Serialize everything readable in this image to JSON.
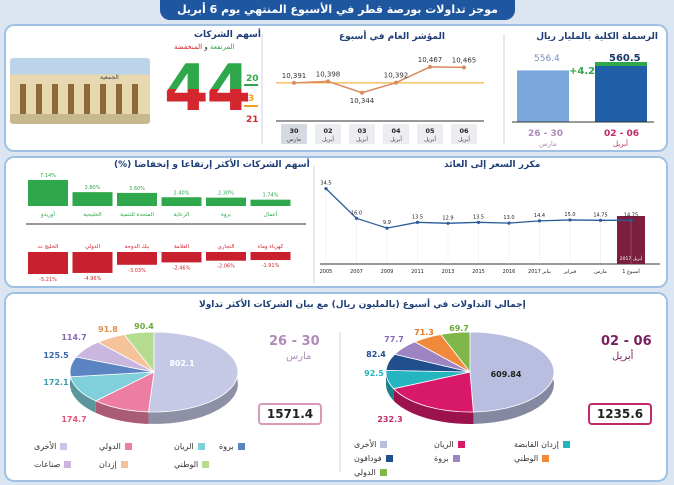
{
  "title": "موجز تداولات بورصة قطر في الأسبوع المنتهي يوم 6 أبريل 2017",
  "cap": {
    "header": "الرسملة الكلية بالمليار ريال",
    "prev_value": "556.4",
    "curr_value": "560.5",
    "change": "+4.2",
    "prev_label": "26 - 30",
    "prev_sub": "مارس",
    "curr_label": "02 - 06",
    "curr_sub": "أبريل",
    "colors": {
      "prev": "#7aa8dd",
      "curr": "#1f5fa8",
      "change": "#2ea84a"
    }
  },
  "index": {
    "header": "المؤشر العام في أسبوع",
    "chart_data": {
      "type": "line",
      "categories": [
        "30",
        "02",
        "03",
        "04",
        "05",
        "06"
      ],
      "category_sub": [
        "مارس",
        "أبريل",
        "أبريل",
        "أبريل",
        "أبريل",
        "أبريل"
      ],
      "values": [
        10391,
        10398,
        10344,
        10392,
        10467,
        10465
      ],
      "value_labels": [
        "10,391",
        "10,398",
        "10,344",
        "10,392",
        "10,467",
        "10,465"
      ]
    }
  },
  "stocks": {
    "header": "أسهم الشركات",
    "subheader_up": "المرتفعة",
    "subheader_and": "و",
    "subheader_down": "المنخفضة",
    "big_number": "44",
    "up": "20",
    "unchanged": "3",
    "down": "21",
    "colors": {
      "up": "#2ea84a",
      "down": "#d3262e",
      "unchanged": "#f0a020"
    },
    "photo_caption": "الجمعية"
  },
  "movers": {
    "header": "أسهم الشركات الأكثر إرتفاعا و إنخفاضا (%)",
    "chart_data": {
      "type": "bar",
      "gainers": [
        {
          "name": "أوريدو",
          "value": 7.14,
          "label": "7.14%"
        },
        {
          "name": "الخليجية",
          "value": 3.8,
          "label": "3.80%"
        },
        {
          "name": "المتحدة للتنمية",
          "value": 3.6,
          "label": "3.60%"
        },
        {
          "name": "الرعاية",
          "value": 2.4,
          "label": "2.40%"
        },
        {
          "name": "بروة",
          "value": 2.3,
          "label": "2.30%"
        },
        {
          "name": "أعمال",
          "value": 1.74,
          "label": "1.74%"
        }
      ],
      "losers": [
        {
          "name": "الخليج ت",
          "value": -5.21,
          "label": "-5.21%"
        },
        {
          "name": "الدولي",
          "value": -4.96,
          "label": "-4.96%"
        },
        {
          "name": "بنك الدوحة",
          "value": -3.03,
          "label": "-3.03%"
        },
        {
          "name": "العلامة",
          "value": -2.46,
          "label": "-2.46%"
        },
        {
          "name": "التجاري",
          "value": -2.06,
          "label": "-2.06%"
        },
        {
          "name": "كهرباء وماء",
          "value": -1.91,
          "label": "-1.91%"
        }
      ]
    }
  },
  "pe": {
    "header": "مكرر السعر إلى العائد",
    "highlight_label": "أبريل 2017",
    "chart_data": {
      "type": "line",
      "categories": [
        "2005",
        "2007",
        "2009",
        "2011",
        "2013",
        "2015",
        "2016",
        "يناير 2017",
        "فبراير",
        "مارس",
        "أسبوع 1"
      ],
      "values": [
        34.5,
        16.0,
        9.9,
        13.5,
        12.9,
        13.5,
        13.0,
        14.4,
        15.0,
        14.75,
        14.75
      ],
      "value_labels": [
        "34.5",
        "16.0",
        "9.9",
        "13.5",
        "12.9",
        "13.5",
        "13.0",
        "14.4",
        "15.0",
        "14.75",
        "14.75"
      ]
    }
  },
  "turnover": {
    "header": "إجمالي التداولات في أسبوع (بالمليون ريال) مع بيان الشركات الأكثر تداولا",
    "curr": {
      "period": "02 - 06",
      "period_sub": "أبريل",
      "total": "1235.6",
      "chart_data": {
        "type": "pie",
        "slices": [
          {
            "name": "الأخرى",
            "value": 609.84,
            "label": "609.84",
            "color": "#b9bddf"
          },
          {
            "name": "الريان",
            "value": 232.3,
            "label": "232.3",
            "color": "#d8196a"
          },
          {
            "name": "إزدان القابضة",
            "value": 92.5,
            "label": "92.5",
            "color": "#23b5c0"
          },
          {
            "name": "فودافون",
            "value": 82.4,
            "label": "82.4",
            "color": "#214f8e"
          },
          {
            "name": "بروة",
            "value": 77.7,
            "label": "77.7",
            "color": "#9d84c2"
          },
          {
            "name": "الوطني",
            "value": 71.3,
            "label": "71.3",
            "color": "#f08a3a"
          },
          {
            "name": "الدولي",
            "value": 69.7,
            "label": "69.7",
            "color": "#7fb848"
          }
        ]
      }
    },
    "prev": {
      "period": "26 - 30",
      "period_sub": "مارس",
      "total": "1571.4",
      "chart_data": {
        "type": "pie",
        "slices": [
          {
            "name": "الأخرى",
            "value": 802.1,
            "label": "802.1",
            "color": "#c5c9e6"
          },
          {
            "name": "الدولي",
            "value": 174.7,
            "label": "174.7",
            "color": "#ec7ea4"
          },
          {
            "name": "الريان",
            "value": 172.1,
            "label": "172.1",
            "color": "#7fd0da"
          },
          {
            "name": "بروة",
            "value": 125.5,
            "label": "125.5",
            "color": "#5a84c2"
          },
          {
            "name": "صناعات",
            "value": 114.7,
            "label": "114.7",
            "color": "#c9b7e0"
          },
          {
            "name": "إزدان",
            "value": 91.8,
            "label": "91.8",
            "color": "#f5c29a"
          },
          {
            "name": "الوطني",
            "value": 90.4,
            "label": "90.4",
            "color": "#b4dc8e"
          }
        ]
      }
    }
  }
}
